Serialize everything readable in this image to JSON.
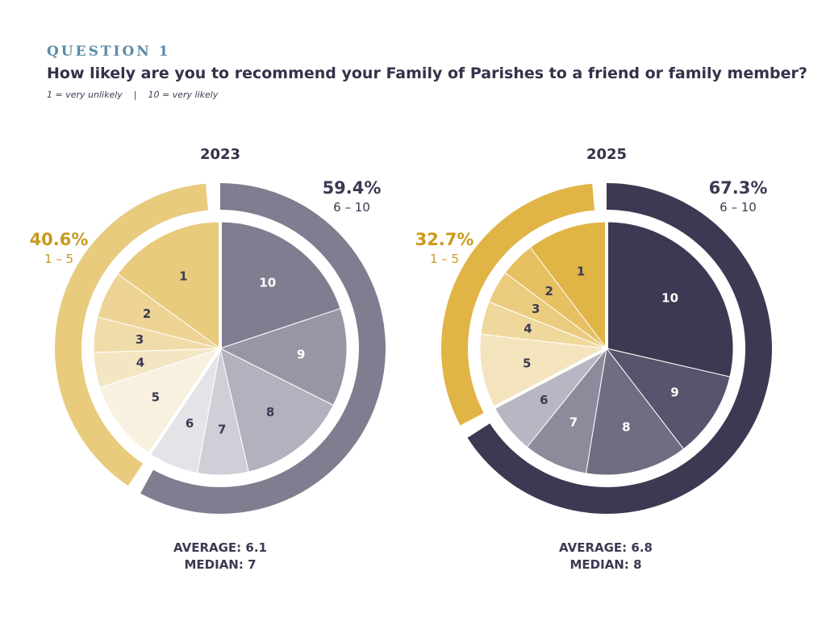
{
  "header": {
    "eyebrow": "QUESTION 1",
    "question": "How likely are you to recommend your Family of Parishes to a friend or family member?",
    "scale_low": "1 = very unlikely",
    "scale_sep": "|",
    "scale_high": "10 = very likely"
  },
  "chart_data": [
    {
      "type": "pie",
      "title": "2023",
      "categories": [
        "1",
        "2",
        "3",
        "4",
        "5",
        "6",
        "7",
        "8",
        "9",
        "10"
      ],
      "values": [
        15.0,
        6.0,
        4.5,
        4.5,
        10.6,
        6.5,
        6.5,
        14.0,
        12.5,
        19.9
      ],
      "groups": [
        {
          "label": "1 – 5",
          "value": "40.6%",
          "share": 40.6,
          "color": "#e9cb7e"
        },
        {
          "label": "6 – 10",
          "value": "59.4%",
          "share": 59.4,
          "color": "#7f7d8f"
        }
      ],
      "colors": [
        "#e9cb7e",
        "#edd495",
        "#f0dca9",
        "#f3e6c3",
        "#f8f1df",
        "#e3e3e8",
        "#d0cfd7",
        "#b2b1bd",
        "#9796a5",
        "#7f7d8f"
      ],
      "label_colors": [
        "#3c3a52",
        "#3c3a52",
        "#3c3a52",
        "#3c3a52",
        "#3c3a52",
        "#3c3a52",
        "#3c3a52",
        "#3c3a52",
        "#ffffff",
        "#ffffff"
      ],
      "summary": {
        "average": "AVERAGE: 6.1",
        "median": "MEDIAN: 7"
      }
    },
    {
      "type": "pie",
      "title": "2025",
      "categories": [
        "1",
        "2",
        "3",
        "4",
        "5",
        "6",
        "7",
        "8",
        "9",
        "10"
      ],
      "values": [
        10.3,
        4.5,
        4.2,
        4.2,
        9.5,
        6.5,
        8.2,
        13.0,
        11.0,
        28.6
      ],
      "groups": [
        {
          "label": "1 – 5",
          "value": "32.7%",
          "share": 32.7,
          "color": "#e1b446"
        },
        {
          "label": "6 – 10",
          "value": "67.3%",
          "share": 67.3,
          "color": "#3b3a52"
        }
      ],
      "colors": [
        "#e1b446",
        "#e6c061",
        "#ebcc7e",
        "#efd89c",
        "#f4e4bd",
        "#b7b6c2",
        "#8c8b9c",
        "#6e6d82",
        "#56556d",
        "#3b3a52"
      ],
      "label_colors": [
        "#3c3a52",
        "#3c3a52",
        "#3c3a52",
        "#3c3a52",
        "#3c3a52",
        "#3c3a52",
        "#ffffff",
        "#ffffff",
        "#ffffff",
        "#ffffff"
      ],
      "summary": {
        "average": "AVERAGE: 6.8",
        "median": "MEDIAN: 8"
      }
    }
  ]
}
